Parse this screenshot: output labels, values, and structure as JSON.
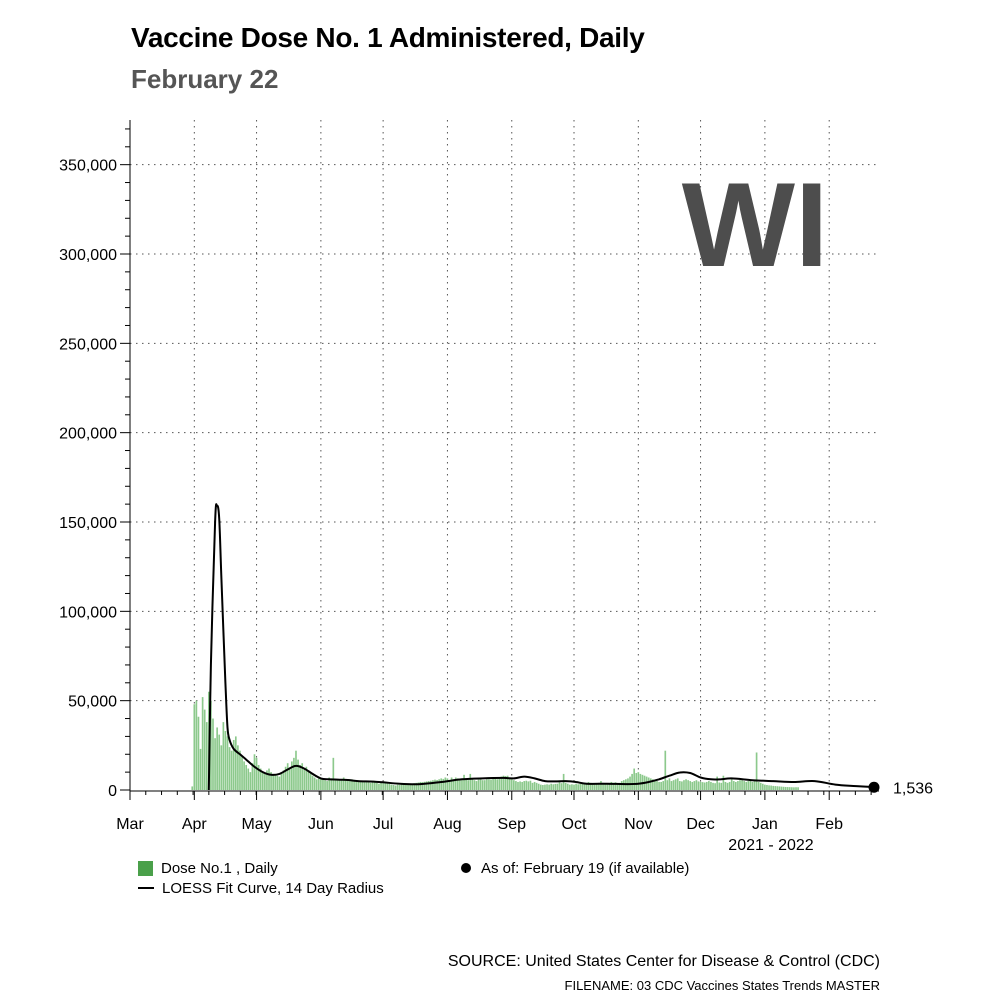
{
  "header": {
    "title": "Vaccine Dose No. 1 Administered, Daily",
    "subtitle": "February 22"
  },
  "state_label": "WI",
  "legend": {
    "bars_label": "Dose No.1 , Daily",
    "curve_label": "LOESS Fit Curve, 14 Day Radius",
    "point_label": "As of: February 19 (if available)"
  },
  "footer": {
    "source": "SOURCE: United States Center for Disease & Control (CDC)",
    "filename": "FILENAME: 03 CDC Vaccines States Trends MASTER"
  },
  "colors": {
    "bars": "#8cc98c",
    "swatch": "#4aa04a",
    "curve": "#000000",
    "state_label": "#4d4d4d"
  },
  "chart_data": {
    "type": "bar",
    "title": "Vaccine Dose No. 1 Administered, Daily",
    "subtitle": "February 22",
    "xlabel": "2021 - 2022",
    "ylabel": "",
    "ylim": [
      0,
      375000
    ],
    "yticks": [
      0,
      50000,
      100000,
      150000,
      200000,
      250000,
      300000,
      350000
    ],
    "ytick_labels": [
      "0",
      "50,000",
      "100,000",
      "150,000",
      "200,000",
      "250,000",
      "300,000",
      "350,000"
    ],
    "xlim_days": [
      0,
      361
    ],
    "month_ticks": [
      {
        "label": "Mar",
        "day": 0
      },
      {
        "label": "Apr",
        "day": 31
      },
      {
        "label": "May",
        "day": 61
      },
      {
        "label": "Jun",
        "day": 92
      },
      {
        "label": "Jul",
        "day": 122
      },
      {
        "label": "Aug",
        "day": 153
      },
      {
        "label": "Sep",
        "day": 184
      },
      {
        "label": "Oct",
        "day": 214
      },
      {
        "label": "Nov",
        "day": 245
      },
      {
        "label": "Dec",
        "day": 275
      },
      {
        "label": "Jan",
        "day": 306
      },
      {
        "label": "Feb",
        "day": 337
      }
    ],
    "grid": true,
    "legend_position": "bottom",
    "bars_series": {
      "name": "Dose No.1 , Daily",
      "start_date": "2021-03-31",
      "values": [
        2000,
        48000,
        50000,
        41000,
        23000,
        52000,
        45000,
        38000,
        55000,
        50000,
        40000,
        29000,
        35000,
        31000,
        25000,
        38000,
        33000,
        30000,
        24000,
        22000,
        28000,
        30000,
        25000,
        22000,
        19000,
        16000,
        14000,
        12000,
        10000,
        15000,
        20000,
        18000,
        14000,
        12000,
        10000,
        9000,
        11000,
        12000,
        10000,
        9000,
        8500,
        8000,
        7500,
        9000,
        11000,
        13000,
        15000,
        12000,
        16000,
        18000,
        22000,
        17000,
        14000,
        15000,
        12000,
        13000,
        10000,
        9000,
        8000,
        7000,
        6000,
        7000,
        6500,
        6000,
        5500,
        5000,
        7000,
        6500,
        18000,
        6000,
        5500,
        6000,
        5500,
        7000,
        6000,
        5000,
        5200,
        6000,
        5500,
        4500,
        4500,
        5000,
        4500,
        5000,
        4800,
        4300,
        4000,
        4200,
        4500,
        4000,
        3500,
        4000,
        3800,
        4000,
        4500,
        3500,
        3000,
        2800,
        2500,
        3000,
        2800,
        3200,
        3000,
        3500,
        3300,
        3500,
        3400,
        3800,
        4000,
        4200,
        4500,
        4400,
        4600,
        4800,
        5000,
        5200,
        5500,
        5800,
        5600,
        6000,
        6500,
        6200,
        7000,
        6500,
        5000,
        7000,
        6000,
        7000,
        6500,
        6000,
        5500,
        8500,
        6000,
        5500,
        9000,
        6000,
        5500,
        5000,
        5800,
        6000,
        5500,
        5500,
        6000,
        6000,
        5800,
        6200,
        6500,
        6000,
        7000,
        7500,
        8000,
        7800,
        8000,
        6500,
        6000,
        5500,
        5000,
        4500,
        4800,
        4500,
        5000,
        5200,
        4800,
        5200,
        4000,
        4500,
        4000,
        3500,
        3000,
        2800,
        3000,
        3200,
        3000,
        3500,
        3200,
        3400,
        3500,
        4500,
        3800,
        9000,
        4000,
        3500,
        3000,
        3200,
        3000,
        3500,
        3200,
        3500,
        3600,
        3800,
        4000,
        4500,
        4000,
        3500,
        3000,
        3500,
        4000,
        5000,
        4000,
        3500,
        3800,
        4000,
        4500,
        4000,
        4300,
        3500,
        4000,
        5000,
        5500,
        6000,
        6500,
        7500,
        9000,
        12000,
        9500,
        10000,
        9000,
        8500,
        8000,
        7500,
        7000,
        6500,
        6000,
        5500,
        5000,
        4500,
        4500,
        5000,
        22000,
        5500,
        6500,
        5000,
        5500,
        6000,
        6500,
        5000,
        4800,
        5500,
        6000,
        5500,
        5000,
        4500,
        5000,
        5500,
        4800,
        4600,
        4400,
        4200,
        4500,
        5000,
        4500,
        4000,
        3800,
        7500,
        4200,
        4000,
        8000,
        4500,
        4000,
        4500,
        6500,
        5000,
        4500,
        5000,
        5500,
        5500,
        5000,
        4500,
        5000,
        5500,
        4500,
        5500,
        21000,
        4500,
        4000,
        3500,
        3000,
        2800,
        2600,
        2500,
        2300,
        2200,
        2100,
        2000,
        1900,
        1800,
        1700,
        1650,
        1600,
        1550,
        1500,
        1550,
        1536
      ]
    },
    "curve_series": {
      "name": "LOESS Fit Curve, 14 Day Radius",
      "days": [
        38,
        39,
        41,
        42,
        43,
        44,
        46,
        47,
        48,
        50,
        53,
        56,
        60,
        64,
        68,
        72,
        76,
        80,
        84,
        88,
        92,
        96,
        100,
        105,
        110,
        120,
        130,
        140,
        150,
        160,
        170,
        180,
        185,
        190,
        195,
        200,
        205,
        210,
        215,
        220,
        230,
        240,
        245,
        250,
        255,
        260,
        265,
        270,
        275,
        280,
        285,
        290,
        300,
        310,
        320,
        330,
        340,
        350,
        361
      ],
      "values": [
        0,
        70000,
        150000,
        159000,
        152000,
        120000,
        60000,
        35000,
        28000,
        23000,
        20000,
        17000,
        13000,
        10000,
        8500,
        9000,
        11500,
        13500,
        12000,
        9000,
        6500,
        6000,
        5800,
        5600,
        5000,
        4500,
        3500,
        3300,
        4500,
        6000,
        6500,
        6800,
        6500,
        7500,
        6500,
        5000,
        4800,
        5000,
        4500,
        3500,
        3500,
        3300,
        3500,
        4500,
        6000,
        8000,
        9800,
        9500,
        7000,
        6000,
        6000,
        6500,
        5500,
        5000,
        4500,
        5000,
        3000,
        2200,
        1536
      ]
    },
    "last_point": {
      "day": 361,
      "value": 1536,
      "label": "1,536"
    }
  }
}
